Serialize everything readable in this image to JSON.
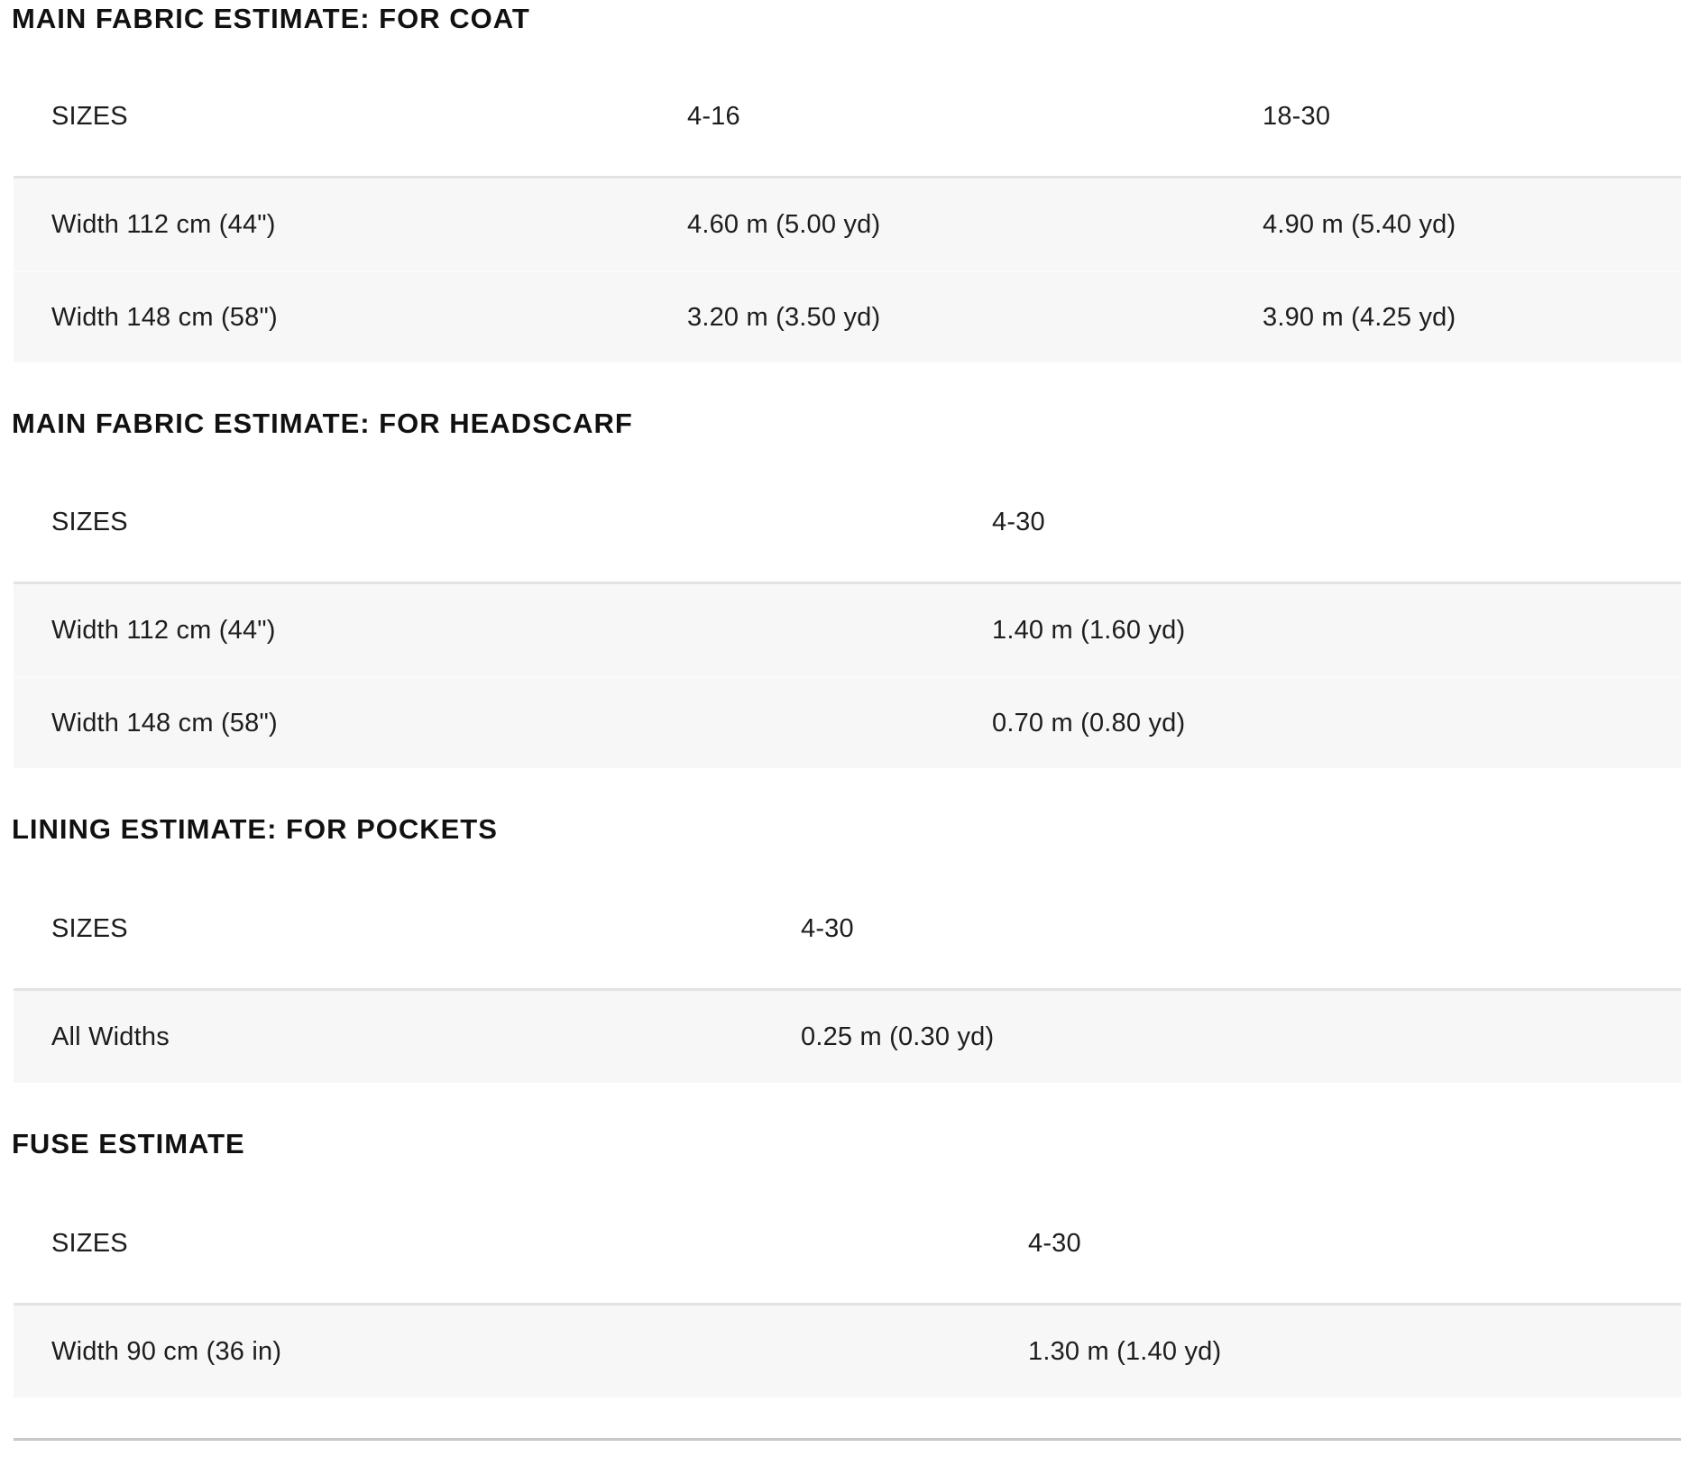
{
  "page": {
    "background": "#ffffff",
    "text_color": "#1d1d1d",
    "title_color": "#111111",
    "row_background": "#f7f7f7",
    "row_top_border": "#e3e3e3",
    "row_divider": "#fbfbfb",
    "bottom_rule_color": "#c8c8c8"
  },
  "sections": [
    {
      "title": "MAIN FABRIC ESTIMATE: FOR COAT",
      "header": {
        "label": "SIZES",
        "columns": [
          "4-16",
          "18-30"
        ]
      },
      "rows": [
        {
          "label": "Width 112 cm (44\")",
          "values": [
            "4.60 m (5.00 yd)",
            "4.90 m (5.40 yd)"
          ]
        },
        {
          "label": "Width 148 cm (58\")",
          "values": [
            "3.20 m (3.50 yd)",
            "3.90 m (4.25 yd)"
          ]
        }
      ]
    },
    {
      "title": "MAIN FABRIC ESTIMATE: FOR HEADSCARF",
      "header": {
        "label": "SIZES",
        "columns": [
          "4-30"
        ]
      },
      "rows": [
        {
          "label": "Width 112 cm (44\")",
          "values": [
            "1.40 m (1.60 yd)"
          ]
        },
        {
          "label": "Width 148 cm (58\")",
          "values": [
            "0.70 m (0.80 yd)"
          ]
        }
      ]
    },
    {
      "title": "LINING ESTIMATE: FOR POCKETS",
      "header": {
        "label": "SIZES",
        "columns": [
          "4-30"
        ]
      },
      "rows": [
        {
          "label": "All Widths",
          "values": [
            "0.25 m (0.30 yd)"
          ]
        }
      ]
    },
    {
      "title": "FUSE ESTIMATE",
      "header": {
        "label": "SIZES",
        "columns": [
          "4-30"
        ]
      },
      "rows": [
        {
          "label": "Width 90 cm (36 in)",
          "values": [
            "1.30 m (1.40 yd)"
          ]
        }
      ]
    }
  ]
}
